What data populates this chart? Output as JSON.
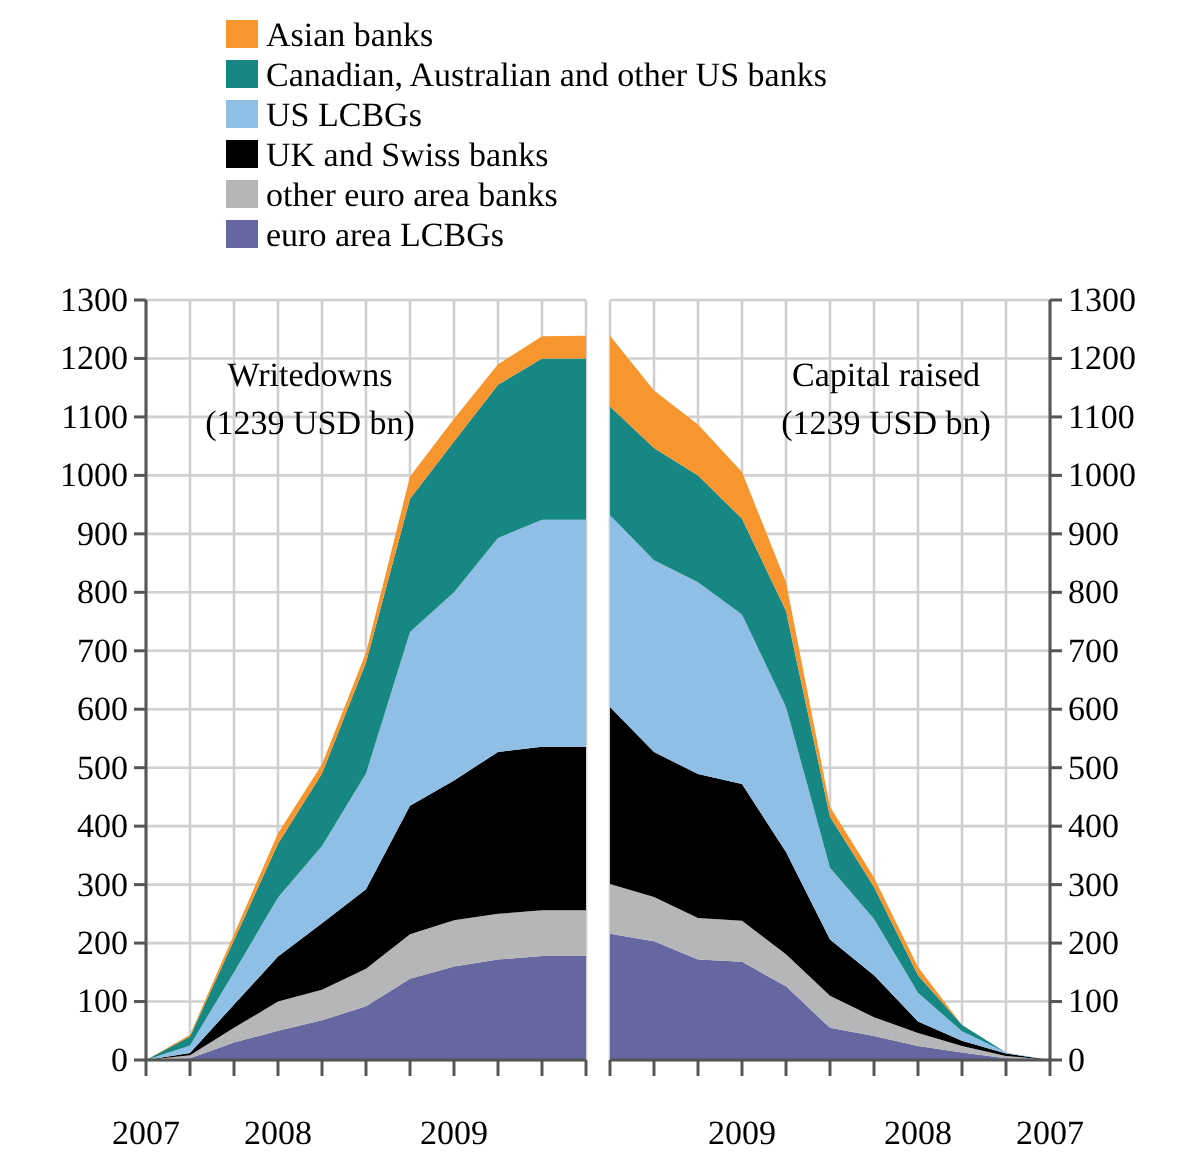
{
  "chart_data": [
    {
      "type": "area",
      "stacked": true,
      "title": "Writedowns",
      "subtitle": "(1239 USD bn)",
      "legend": "top",
      "grid": true,
      "categories": [
        "2007",
        null,
        null,
        "2008",
        null,
        null,
        null,
        "2009",
        null,
        null,
        null
      ],
      "ylim": [
        0,
        1300
      ],
      "yticks": [
        0,
        100,
        200,
        300,
        400,
        500,
        600,
        700,
        800,
        900,
        1000,
        1100,
        1200,
        1300
      ],
      "series": [
        {
          "name": "euro area LCBGs",
          "color": "#6667a0",
          "values": [
            0,
            3,
            30,
            50,
            68,
            92,
            139,
            160,
            172,
            178,
            178
          ]
        },
        {
          "name": "other euro area banks",
          "color": "#b5b6b8",
          "values": [
            0,
            5,
            25,
            50,
            52,
            64,
            76,
            79,
            78,
            78,
            78
          ]
        },
        {
          "name": "UK and Swiss banks",
          "color": "#000000",
          "values": [
            0,
            4,
            40,
            77,
            114,
            136,
            220,
            239,
            277,
            280,
            280
          ]
        },
        {
          "name": "US LCBGs",
          "color": "#8fbfe5",
          "values": [
            0,
            13,
            55,
            101,
            132,
            198,
            297,
            322,
            366,
            388,
            388
          ]
        },
        {
          "name": "Canadian, Australian and other US banks",
          "color": "#178783",
          "values": [
            0,
            15,
            55,
            92,
            124,
            190,
            228,
            258,
            262,
            276,
            276
          ]
        },
        {
          "name": "Asian banks",
          "color": "#f7962f",
          "values": [
            0,
            3,
            10,
            18,
            16,
            17,
            38,
            39,
            35,
            38,
            39
          ]
        }
      ]
    },
    {
      "type": "area",
      "stacked": true,
      "title": "Capital raised",
      "subtitle": "(1239 USD bn)",
      "grid": true,
      "categories": [
        null,
        null,
        null,
        "2009",
        null,
        null,
        null,
        "2008",
        null,
        null,
        "2007"
      ],
      "ylim": [
        0,
        1300
      ],
      "yticks": [
        0,
        100,
        200,
        300,
        400,
        500,
        600,
        700,
        800,
        900,
        1000,
        1100,
        1200,
        1300
      ],
      "series": [
        {
          "color": "#6667a0",
          "values": [
            216,
            203,
            172,
            168,
            126,
            55,
            41,
            24,
            13,
            3,
            0
          ]
        },
        {
          "color": "#b5b6b8",
          "values": [
            85,
            76,
            71,
            70,
            55,
            55,
            32,
            22,
            11,
            4,
            0
          ]
        },
        {
          "color": "#000000",
          "values": [
            303,
            248,
            246,
            234,
            175,
            96,
            72,
            20,
            9,
            4,
            0
          ]
        },
        {
          "color": "#8fbfe5",
          "values": [
            328,
            328,
            328,
            290,
            248,
            123,
            96,
            49,
            16,
            2,
            0
          ]
        },
        {
          "color": "#178783",
          "values": [
            186,
            192,
            183,
            164,
            164,
            87,
            55,
            30,
            11,
            0,
            0
          ]
        },
        {
          "color": "#f7962f",
          "values": [
            121,
            98,
            87,
            80,
            49,
            17,
            16,
            14,
            0,
            0,
            0
          ]
        }
      ]
    }
  ]
}
